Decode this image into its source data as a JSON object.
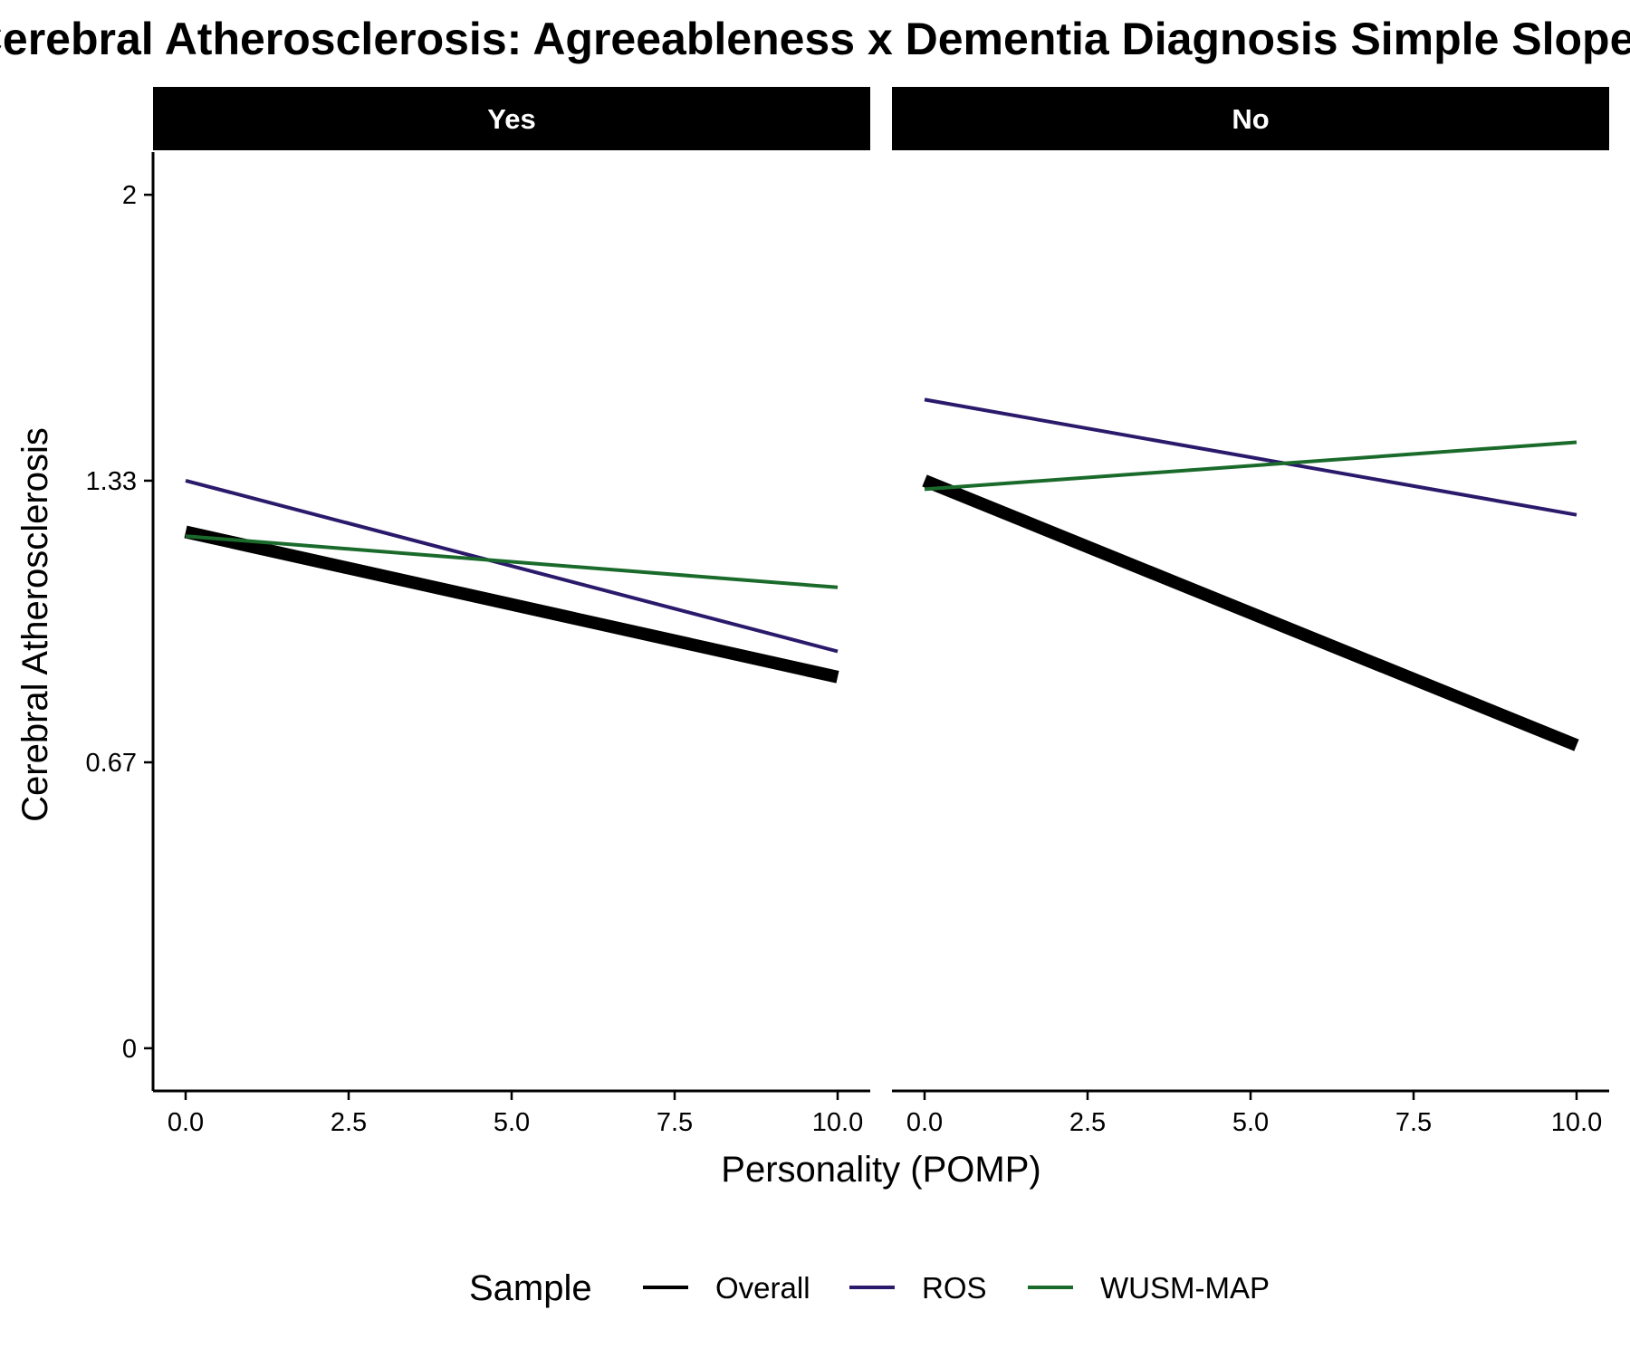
{
  "chart_data": {
    "type": "line",
    "title": "Cerebral Atherosclerosis: Agreeableness x Dementia Diagnosis Simple Slopes",
    "xlabel": "Personality (POMP)",
    "ylabel": "Cerebral Atherosclerosis",
    "xlim": [
      -0.5,
      10.5
    ],
    "ylim": [
      -0.1,
      2.1
    ],
    "x_ticks": [
      0,
      2.5,
      5,
      7.5,
      10
    ],
    "x_tick_labels": [
      "0.0",
      "2.5",
      "5.0",
      "7.5",
      "10.0"
    ],
    "y_ticks": [
      0,
      0.67,
      1.33,
      2
    ],
    "y_tick_labels": [
      "0",
      "0.67",
      "1.33",
      "2"
    ],
    "grid": false,
    "legend": {
      "title": "Sample",
      "position": "bottom",
      "entries": [
        "Overall",
        "ROS",
        "WUSM-MAP"
      ]
    },
    "series_styles": [
      {
        "name": "Overall",
        "color": "#000000",
        "width": "thick"
      },
      {
        "name": "ROS",
        "color": "#2b1a6b",
        "width": "normal"
      },
      {
        "name": "WUSM-MAP",
        "color": "#1a6b2b",
        "width": "normal"
      }
    ],
    "panels": [
      {
        "label": "Yes",
        "series": [
          {
            "name": "Overall",
            "x": [
              0,
              10
            ],
            "y": [
              1.21,
              0.87
            ]
          },
          {
            "name": "ROS",
            "x": [
              0,
              10
            ],
            "y": [
              1.33,
              0.93
            ]
          },
          {
            "name": "WUSM-MAP",
            "x": [
              0,
              10
            ],
            "y": [
              1.2,
              1.08
            ]
          }
        ]
      },
      {
        "label": "No",
        "series": [
          {
            "name": "Overall",
            "x": [
              0,
              10
            ],
            "y": [
              1.33,
              0.71
            ]
          },
          {
            "name": "ROS",
            "x": [
              0,
              10
            ],
            "y": [
              1.52,
              1.25
            ]
          },
          {
            "name": "WUSM-MAP",
            "x": [
              0,
              10
            ],
            "y": [
              1.31,
              1.42
            ]
          }
        ]
      }
    ]
  }
}
